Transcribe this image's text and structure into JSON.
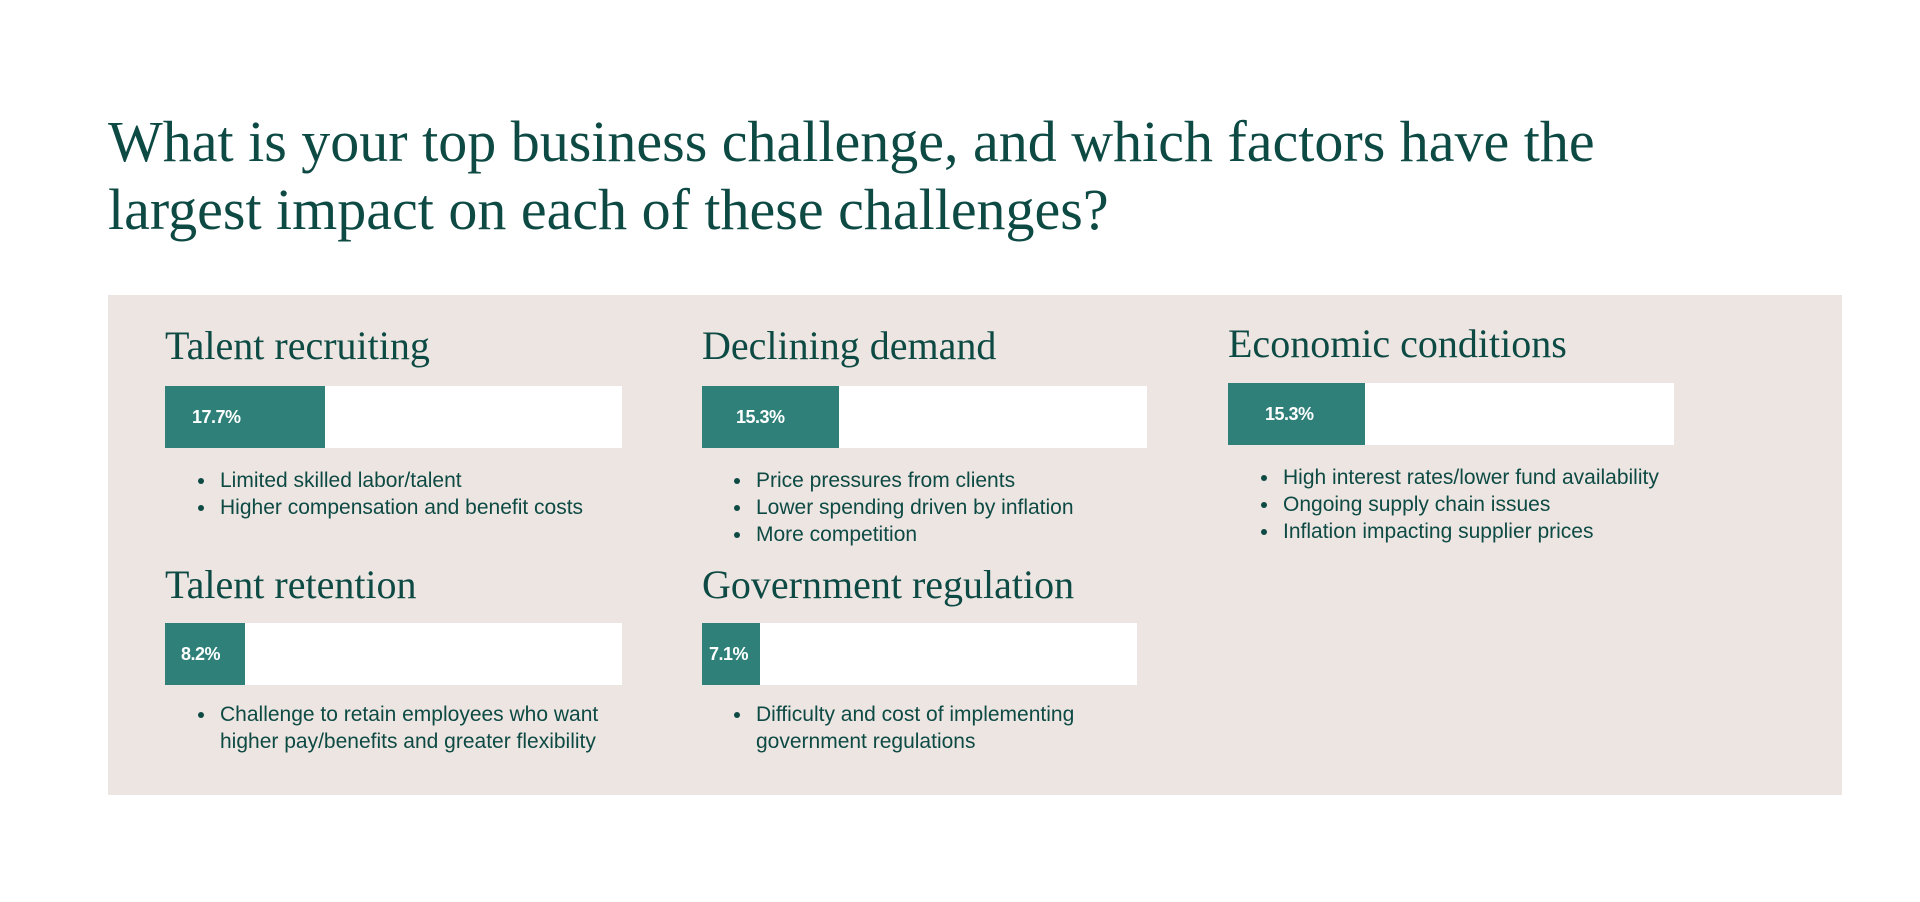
{
  "title": "What is your top business challenge, and which factors have the largest impact on each of these challenges?",
  "colors": {
    "bar_fill": "#2e8079",
    "bar_track": "#ffffff",
    "panel": "#ede5e2",
    "text": "#0e4a44"
  },
  "challenges": [
    {
      "name": "Talent recruiting",
      "percent_label": "17.7%",
      "percent": 17.7,
      "factors": [
        "Limited skilled labor/talent",
        "Higher compensation and benefit costs"
      ]
    },
    {
      "name": "Declining demand",
      "percent_label": "15.3%",
      "percent": 15.3,
      "factors": [
        "Price pressures from clients",
        "Lower spending driven by inflation",
        "More competition"
      ]
    },
    {
      "name": "Economic conditions",
      "percent_label": "15.3%",
      "percent": 15.3,
      "factors": [
        "High interest rates/lower fund availability",
        "Ongoing supply chain issues",
        "Inflation impacting supplier prices"
      ]
    },
    {
      "name": "Talent retention",
      "percent_label": "8.2%",
      "percent": 8.2,
      "factors": [
        "Challenge to retain employees who want higher pay/benefits and greater flexibility"
      ]
    },
    {
      "name": "Government regulation",
      "percent_label": "7.1%",
      "percent": 7.1,
      "factors": [
        "Difficulty and cost of implementing government regulations"
      ]
    }
  ]
}
